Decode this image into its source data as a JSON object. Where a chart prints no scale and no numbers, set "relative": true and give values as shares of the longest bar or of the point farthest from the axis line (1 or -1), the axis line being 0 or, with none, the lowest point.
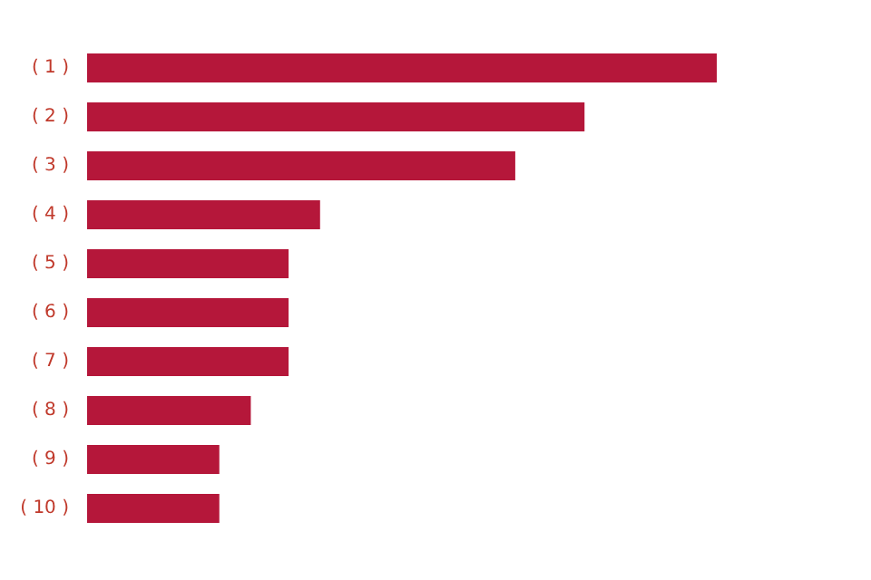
{
  "chart_data": {
    "type": "bar",
    "orientation": "horizontal",
    "relative": true,
    "categories": [
      "( 1 )",
      "( 2 )",
      "( 3 )",
      "( 4 )",
      "( 5 )",
      "( 6 )",
      "( 7 )",
      "( 8 )",
      "( 9 )",
      "( 10 )"
    ],
    "values": [
      1,
      0.79,
      0.68,
      0.37,
      0.32,
      0.32,
      0.32,
      0.26,
      0.21,
      0.21
    ],
    "color": "#b5173a"
  }
}
